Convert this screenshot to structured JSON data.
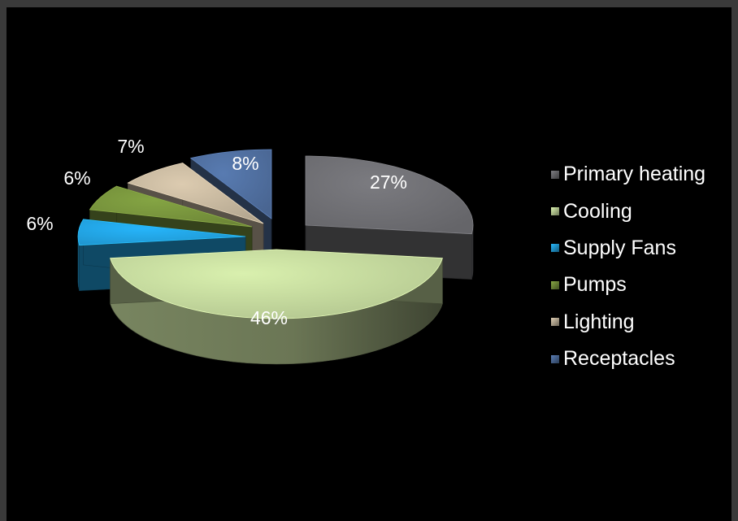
{
  "chart_data": {
    "type": "pie",
    "style": "3D exploded pie",
    "slices": [
      {
        "label": "Primary heating",
        "value": 27,
        "display": "27%",
        "color": "#6e6e72",
        "label_color": "#ffffff"
      },
      {
        "label": "Cooling",
        "value": 46,
        "display": "46%",
        "color": "#c2d69b",
        "label_color": "#ffffff"
      },
      {
        "label": "Supply Fans",
        "value": 6,
        "display": "6%",
        "color": "#22a2e0",
        "label_color": "#ffffff"
      },
      {
        "label": "Pumps",
        "value": 6,
        "display": "6%",
        "color": "#76923c",
        "label_color": "#ffffff"
      },
      {
        "label": "Lighting",
        "value": 7,
        "display": "7%",
        "color": "#c4b59d",
        "label_color": "#ffffff"
      },
      {
        "label": "Receptacles",
        "value": 8,
        "display": "8%",
        "color": "#4f6e9e",
        "label_color": "#ffffff"
      }
    ],
    "legend_position": "right",
    "background": "#000000",
    "frame_color": "#3a3a3a"
  }
}
